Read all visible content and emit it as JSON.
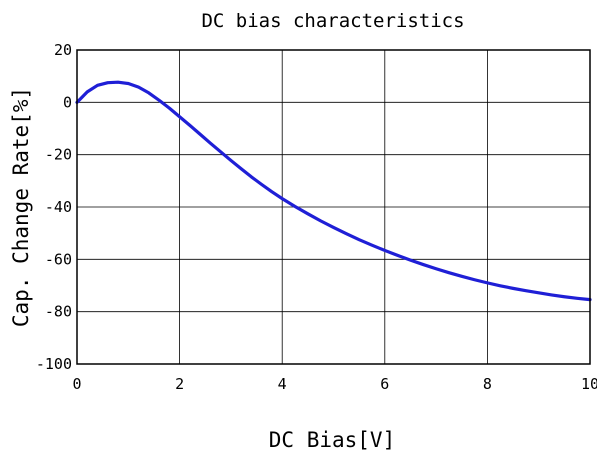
{
  "chart_data": {
    "type": "line",
    "title": "DC bias characteristics",
    "xlabel": "DC Bias[V]",
    "ylabel": "Cap. Change Rate[%]",
    "xlim": [
      0,
      10
    ],
    "ylim": [
      -100,
      20
    ],
    "xticks": [
      "0",
      "2",
      "4",
      "6",
      "8",
      "10"
    ],
    "yticks": [
      "20",
      "0",
      "-20",
      "-40",
      "-60",
      "-80",
      "-100"
    ],
    "grid": true,
    "line_color": "#1f1fd6",
    "series": [
      {
        "name": "",
        "x": [
          0,
          0.2,
          0.4,
          0.6,
          0.8,
          1.0,
          1.2,
          1.4,
          1.6,
          1.8,
          2.0,
          2.2,
          2.4,
          2.6,
          2.8,
          3.0,
          3.2,
          3.4,
          3.6,
          3.8,
          4.0,
          4.25,
          4.5,
          4.75,
          5.0,
          5.25,
          5.5,
          5.75,
          6.0,
          6.25,
          6.5,
          6.75,
          7.0,
          7.25,
          7.5,
          7.75,
          8.0,
          8.25,
          8.5,
          8.75,
          9.0,
          9.25,
          9.5,
          9.75,
          10.0
        ],
        "y": [
          0,
          4,
          6.5,
          7.5,
          7.7,
          7.2,
          5.8,
          3.6,
          0.8,
          -2.2,
          -5.5,
          -8.8,
          -12.2,
          -15.6,
          -18.9,
          -22.2,
          -25.4,
          -28.5,
          -31.4,
          -34.2,
          -36.8,
          -39.8,
          -42.6,
          -45.3,
          -47.8,
          -50.2,
          -52.5,
          -54.6,
          -56.6,
          -58.5,
          -60.3,
          -62.0,
          -63.6,
          -65.1,
          -66.5,
          -67.8,
          -69.0,
          -70.1,
          -71.1,
          -72.0,
          -72.8,
          -73.6,
          -74.3,
          -74.9,
          -75.4
        ]
      }
    ]
  }
}
